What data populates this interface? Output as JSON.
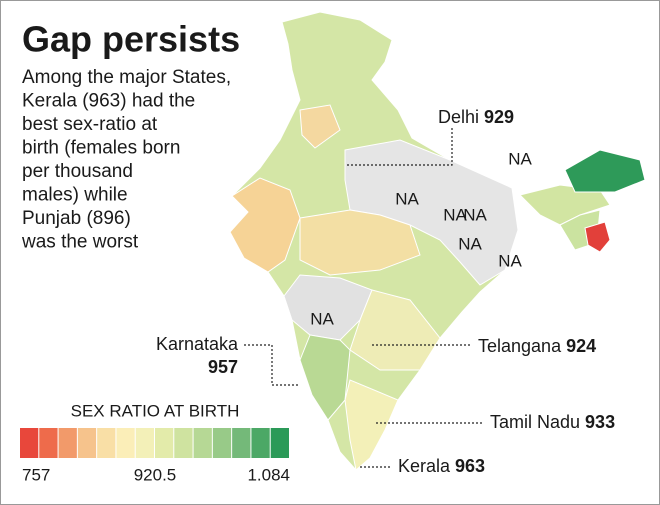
{
  "title": "Gap persists",
  "description": [
    "Among the major States,",
    "Kerala (963) had the",
    "best sex-ratio at",
    "birth (females born",
    "per thousand",
    "males) while",
    "Punjab (896)",
    "was the worst"
  ],
  "callouts": [
    {
      "name": "Delhi",
      "value": 929
    },
    {
      "name": "Karnataka",
      "value": 957
    },
    {
      "name": "Telangana",
      "value": 924
    },
    {
      "name": "Tamil Nadu",
      "value": 933
    },
    {
      "name": "Kerala",
      "value": 963
    }
  ],
  "na_labels": [
    "NA",
    "NA",
    "NA",
    "NA",
    "NA",
    "NA",
    "NA"
  ],
  "legend": {
    "title": "SEX RATIO AT BIRTH",
    "labels": [
      "757",
      "920.5",
      "1.084"
    ],
    "colors": [
      "#e8473b",
      "#ee6b4b",
      "#f29a6a",
      "#f6c38c",
      "#f9dfa6",
      "#fbeeb8",
      "#f3f0b8",
      "#e3ebaa",
      "#cfe3a0",
      "#b6d895",
      "#98ca88",
      "#74b979",
      "#4ca866",
      "#2b9a58"
    ]
  }
}
